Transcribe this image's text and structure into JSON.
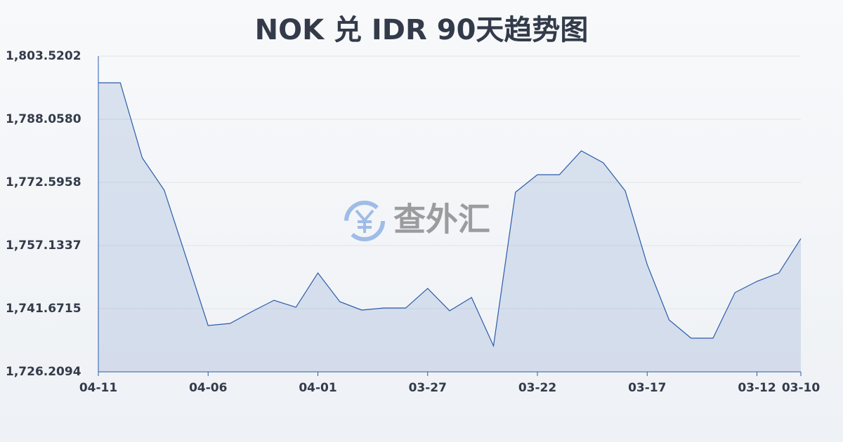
{
  "chart_data": {
    "type": "line",
    "title": "NOK 兑 IDR 90天趋势图",
    "watermark": "查外汇",
    "categories": [
      "04-11",
      null,
      null,
      null,
      null,
      "04-06",
      null,
      null,
      null,
      null,
      "04-01",
      null,
      null,
      null,
      null,
      "03-27",
      null,
      null,
      null,
      null,
      "03-22",
      null,
      null,
      null,
      null,
      "03-17",
      null,
      null,
      null,
      null,
      "03-12",
      null,
      "03-10"
    ],
    "series": [
      {
        "name": "NOK/IDR",
        "color": "#2a5caa",
        "values": [
          1796.99,
          1796.99,
          1778.61,
          1770.71,
          1754.21,
          1737.55,
          1738.06,
          1740.98,
          1743.73,
          1742.02,
          1750.43,
          1743.39,
          1741.33,
          1741.84,
          1741.84,
          1746.65,
          1741.16,
          1744.42,
          1732.57,
          1770.19,
          1774.49,
          1774.49,
          1780.33,
          1777.41,
          1770.53,
          1752.5,
          1738.92,
          1734.46,
          1734.46,
          1745.62,
          1748.37,
          1750.43,
          1758.85
        ]
      }
    ],
    "ylim": [
      1726.2094,
      1803.5202
    ],
    "yticks": [
      {
        "value": 1726.2094,
        "label": "1,726.2094"
      },
      {
        "value": 1741.6715,
        "label": "1,741.6715"
      },
      {
        "value": 1757.1337,
        "label": "1,757.1337"
      },
      {
        "value": 1772.5958,
        "label": "1,772.5958"
      },
      {
        "value": 1788.058,
        "label": "1,788.0580"
      },
      {
        "value": 1803.5202,
        "label": "1,803.5202"
      }
    ],
    "grid": true
  }
}
